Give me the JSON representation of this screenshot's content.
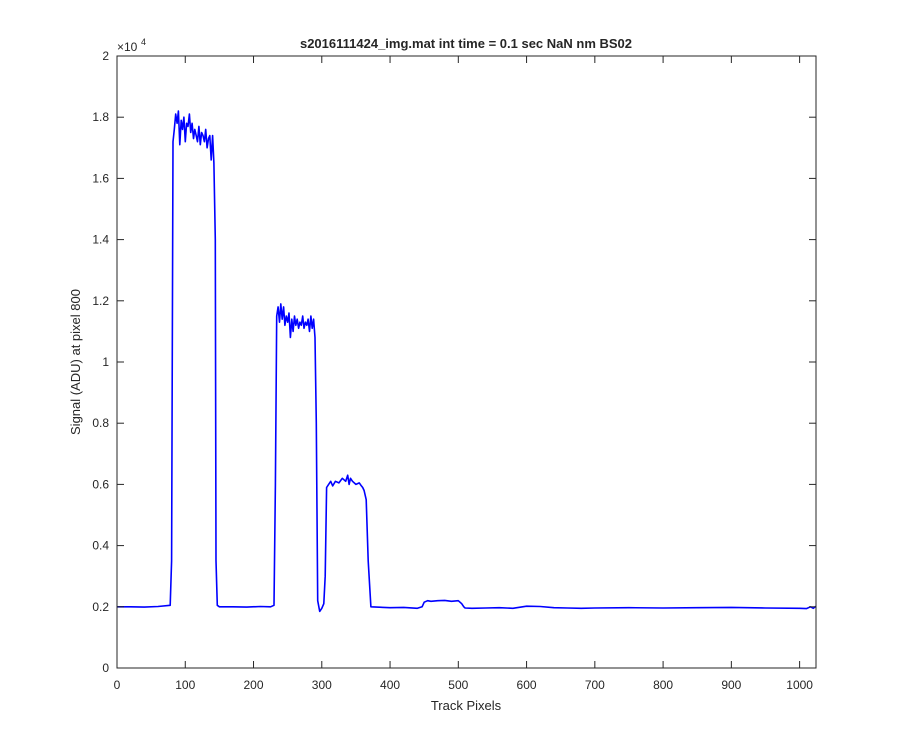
{
  "chart_data": {
    "type": "line",
    "title": "s2016111424_img.mat int time = 0.1 sec  NaN nm BS02",
    "xlabel": "Track Pixels",
    "ylabel": "Signal (ADU) at pixel 800",
    "y_exponent_label": "×10",
    "y_exponent_power": "4",
    "xlim": [
      0,
      1024
    ],
    "ylim": [
      0,
      20000
    ],
    "x_ticks": [
      0,
      100,
      200,
      300,
      400,
      500,
      600,
      700,
      800,
      900,
      1000
    ],
    "x_tick_labels": [
      "0",
      "100",
      "200",
      "300",
      "400",
      "500",
      "600",
      "700",
      "800",
      "900",
      "1000"
    ],
    "y_ticks": [
      0,
      2000,
      4000,
      6000,
      8000,
      10000,
      12000,
      14000,
      16000,
      18000,
      20000
    ],
    "y_tick_labels": [
      "0",
      "0.2",
      "0.4",
      "0.6",
      "0.8",
      "1",
      "1.2",
      "1.4",
      "1.6",
      "1.8",
      "2"
    ],
    "grid": false,
    "series": [
      {
        "color": "#0000ff",
        "x": [
          0,
          20,
          40,
          60,
          78,
          80,
          82,
          84,
          86,
          88,
          90,
          92,
          94,
          96,
          98,
          100,
          102,
          104,
          106,
          108,
          110,
          112,
          114,
          116,
          118,
          120,
          122,
          124,
          126,
          128,
          130,
          132,
          134,
          136,
          138,
          140,
          142,
          144,
          145,
          147,
          150,
          170,
          190,
          210,
          225,
          230,
          232,
          234,
          236,
          238,
          240,
          242,
          244,
          246,
          248,
          250,
          252,
          254,
          256,
          258,
          260,
          262,
          264,
          266,
          268,
          270,
          272,
          274,
          276,
          278,
          280,
          282,
          284,
          286,
          288,
          290,
          292,
          294,
          297,
          300,
          303,
          305,
          307,
          310,
          313,
          316,
          320,
          325,
          330,
          335,
          338,
          340,
          342,
          345,
          350,
          355,
          358,
          360,
          362,
          365,
          368,
          372,
          380,
          400,
          420,
          440,
          447,
          450,
          455,
          460,
          470,
          480,
          490,
          500,
          505,
          508,
          510,
          520,
          540,
          560,
          580,
          600,
          620,
          640,
          660,
          680,
          700,
          750,
          800,
          850,
          900,
          950,
          1000,
          1010,
          1016,
          1020,
          1024
        ],
        "y": [
          2000,
          2000,
          1990,
          2010,
          2050,
          3500,
          17200,
          17600,
          18100,
          17800,
          18200,
          17100,
          17900,
          17600,
          18000,
          17200,
          17800,
          17700,
          18100,
          17500,
          17800,
          17300,
          17600,
          17400,
          17200,
          17700,
          17100,
          17500,
          17400,
          17200,
          17600,
          17000,
          17300,
          17400,
          16600,
          17400,
          16500,
          14000,
          3500,
          2050,
          2000,
          2000,
          1990,
          2010,
          2000,
          2050,
          6000,
          11500,
          11800,
          11300,
          11900,
          11400,
          11800,
          11200,
          11500,
          11300,
          11600,
          10800,
          11400,
          11000,
          11500,
          11200,
          11400,
          11100,
          11300,
          11200,
          11500,
          11100,
          11300,
          11200,
          11400,
          11000,
          11500,
          11100,
          11400,
          10800,
          8000,
          2200,
          1850,
          1950,
          2100,
          3000,
          5900,
          6000,
          6100,
          5950,
          6100,
          6050,
          6200,
          6100,
          6300,
          6000,
          6200,
          6100,
          6000,
          6050,
          5950,
          5900,
          5800,
          5500,
          3500,
          2000,
          1990,
          1970,
          1980,
          1950,
          2000,
          2150,
          2200,
          2180,
          2200,
          2210,
          2180,
          2200,
          2100,
          2000,
          1960,
          1950,
          1960,
          1970,
          1950,
          2020,
          2010,
          1970,
          1960,
          1950,
          1960,
          1970,
          1960,
          1970,
          1980,
          1960,
          1950,
          1940,
          2000,
          1950,
          2020
        ]
      }
    ]
  }
}
